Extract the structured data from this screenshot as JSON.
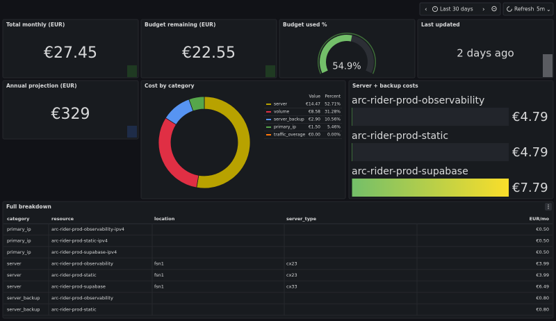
{
  "toolbar": {
    "time_range": "Last 30 days",
    "refresh": "Refresh",
    "interval": "5m"
  },
  "stats": [
    {
      "title": "Total monthly (EUR)",
      "value": "€27.45",
      "color": "#73bf69"
    },
    {
      "title": "Budget remaining (EUR)",
      "value": "€22.55",
      "color": "#73bf69"
    },
    {
      "title": "Last updated",
      "value": "2 days ago",
      "color": "#d8d9da"
    },
    {
      "title": "Annual projection (EUR)",
      "value": "€329",
      "color": "#5794f2"
    }
  ],
  "gauge": {
    "title": "Budget used %",
    "value": 54.9,
    "value_label": "54.9%",
    "range": [
      0,
      100
    ],
    "color": "#73bf69"
  },
  "cost_by_category": {
    "title": "Cost by category",
    "legend_headers": [
      "Value",
      "Percent"
    ],
    "series": [
      {
        "name": "server",
        "color": "#b8a200",
        "value": 14.47,
        "value_label": "€14.47",
        "percent": 52.71,
        "percent_label": "52.71%"
      },
      {
        "name": "volume",
        "color": "#e02f44",
        "value": 8.58,
        "value_label": "€8.58",
        "percent": 31.28,
        "percent_label": "31.28%"
      },
      {
        "name": "server_backup",
        "color": "#5794f2",
        "value": 2.9,
        "value_label": "€2.90",
        "percent": 10.56,
        "percent_label": "10.56%"
      },
      {
        "name": "primary_ip",
        "color": "#56a64b",
        "value": 1.5,
        "value_label": "€1.50",
        "percent": 5.46,
        "percent_label": "5.46%"
      },
      {
        "name": "traffic_overage",
        "color": "#ff780a",
        "value": 0,
        "value_label": "€0.00",
        "percent": 0,
        "percent_label": "0.00%"
      }
    ]
  },
  "server_costs": {
    "title": "Server + backup costs",
    "range": [
      4.79,
      7.79
    ],
    "items": [
      {
        "name": "arc-rider-prod-observability",
        "value": 4.79,
        "value_label": "€4.79",
        "color": "#73bf69"
      },
      {
        "name": "arc-rider-prod-static",
        "value": 4.79,
        "value_label": "€4.79",
        "color": "#73bf69"
      },
      {
        "name": "arc-rider-prod-supabase",
        "value": 7.79,
        "value_label": "€7.79",
        "color": "#fade2a"
      }
    ]
  },
  "table": {
    "title": "Full breakdown",
    "columns": [
      "category",
      "resource",
      "location",
      "server_type",
      "EUR/mo"
    ],
    "rows": [
      [
        "primary_ip",
        "arc-rider-prod-observability-ipv4",
        null,
        null,
        "€0.50"
      ],
      [
        "primary_ip",
        "arc-rider-prod-static-ipv4",
        null,
        null,
        "€0.50"
      ],
      [
        "primary_ip",
        "arc-rider-prod-supabase-ipv4",
        null,
        null,
        "€0.50"
      ],
      [
        "server",
        "arc-rider-prod-observability",
        "fsn1",
        "cx23",
        "€3.99"
      ],
      [
        "server",
        "arc-rider-prod-static",
        "fsn1",
        "cx23",
        "€3.99"
      ],
      [
        "server",
        "arc-rider-prod-supabase",
        "fsn1",
        "cx33",
        "€6.49"
      ],
      [
        "server_backup",
        "arc-rider-prod-observability",
        null,
        null,
        "€0.80"
      ],
      [
        "server_backup",
        "arc-rider-prod-static",
        null,
        null,
        "€0.80"
      ]
    ]
  }
}
